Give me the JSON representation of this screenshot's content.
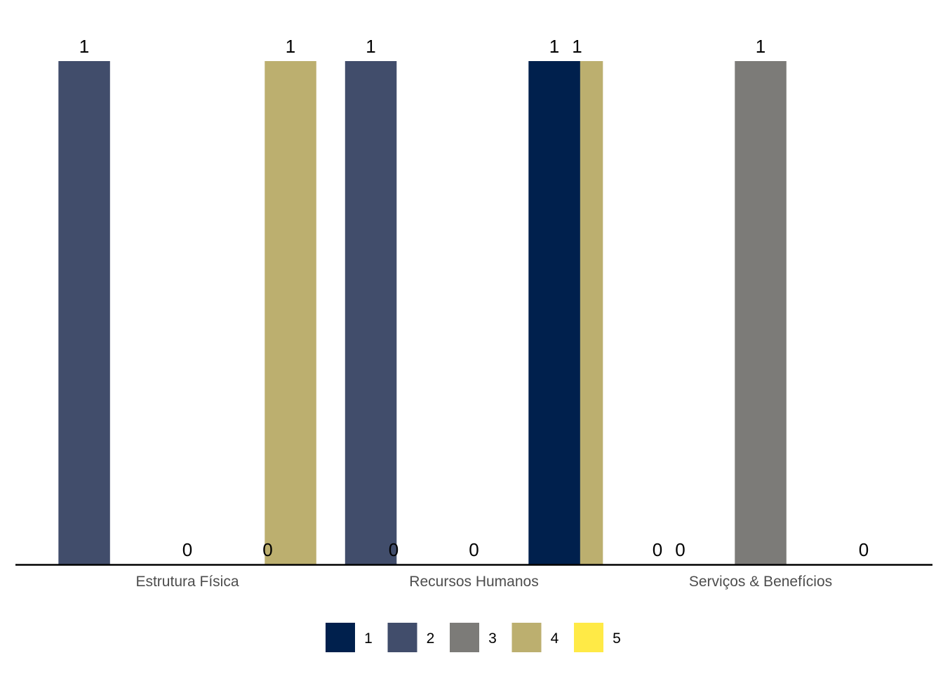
{
  "chart_data": {
    "type": "bar",
    "title": "",
    "xlabel": "",
    "ylabel": "",
    "ylim": [
      0,
      1
    ],
    "grid": false,
    "legend_position": "bottom",
    "categories": [
      "Estrutura Física",
      "Recursos Humanos",
      "Serviços & Benefícios"
    ],
    "series": [
      {
        "name": "1",
        "color": "#00204D",
        "values": [
          0,
          0,
          1
        ]
      },
      {
        "name": "2",
        "color": "#414D6B",
        "values": [
          1,
          1,
          0
        ]
      },
      {
        "name": "3",
        "color": "#7C7B78",
        "values": [
          0,
          0,
          1
        ]
      },
      {
        "name": "4",
        "color": "#BCAF6F",
        "values": [
          1,
          1,
          0
        ]
      },
      {
        "name": "5",
        "color": "#FFEA46",
        "values": [
          0,
          0,
          0
        ]
      }
    ]
  }
}
